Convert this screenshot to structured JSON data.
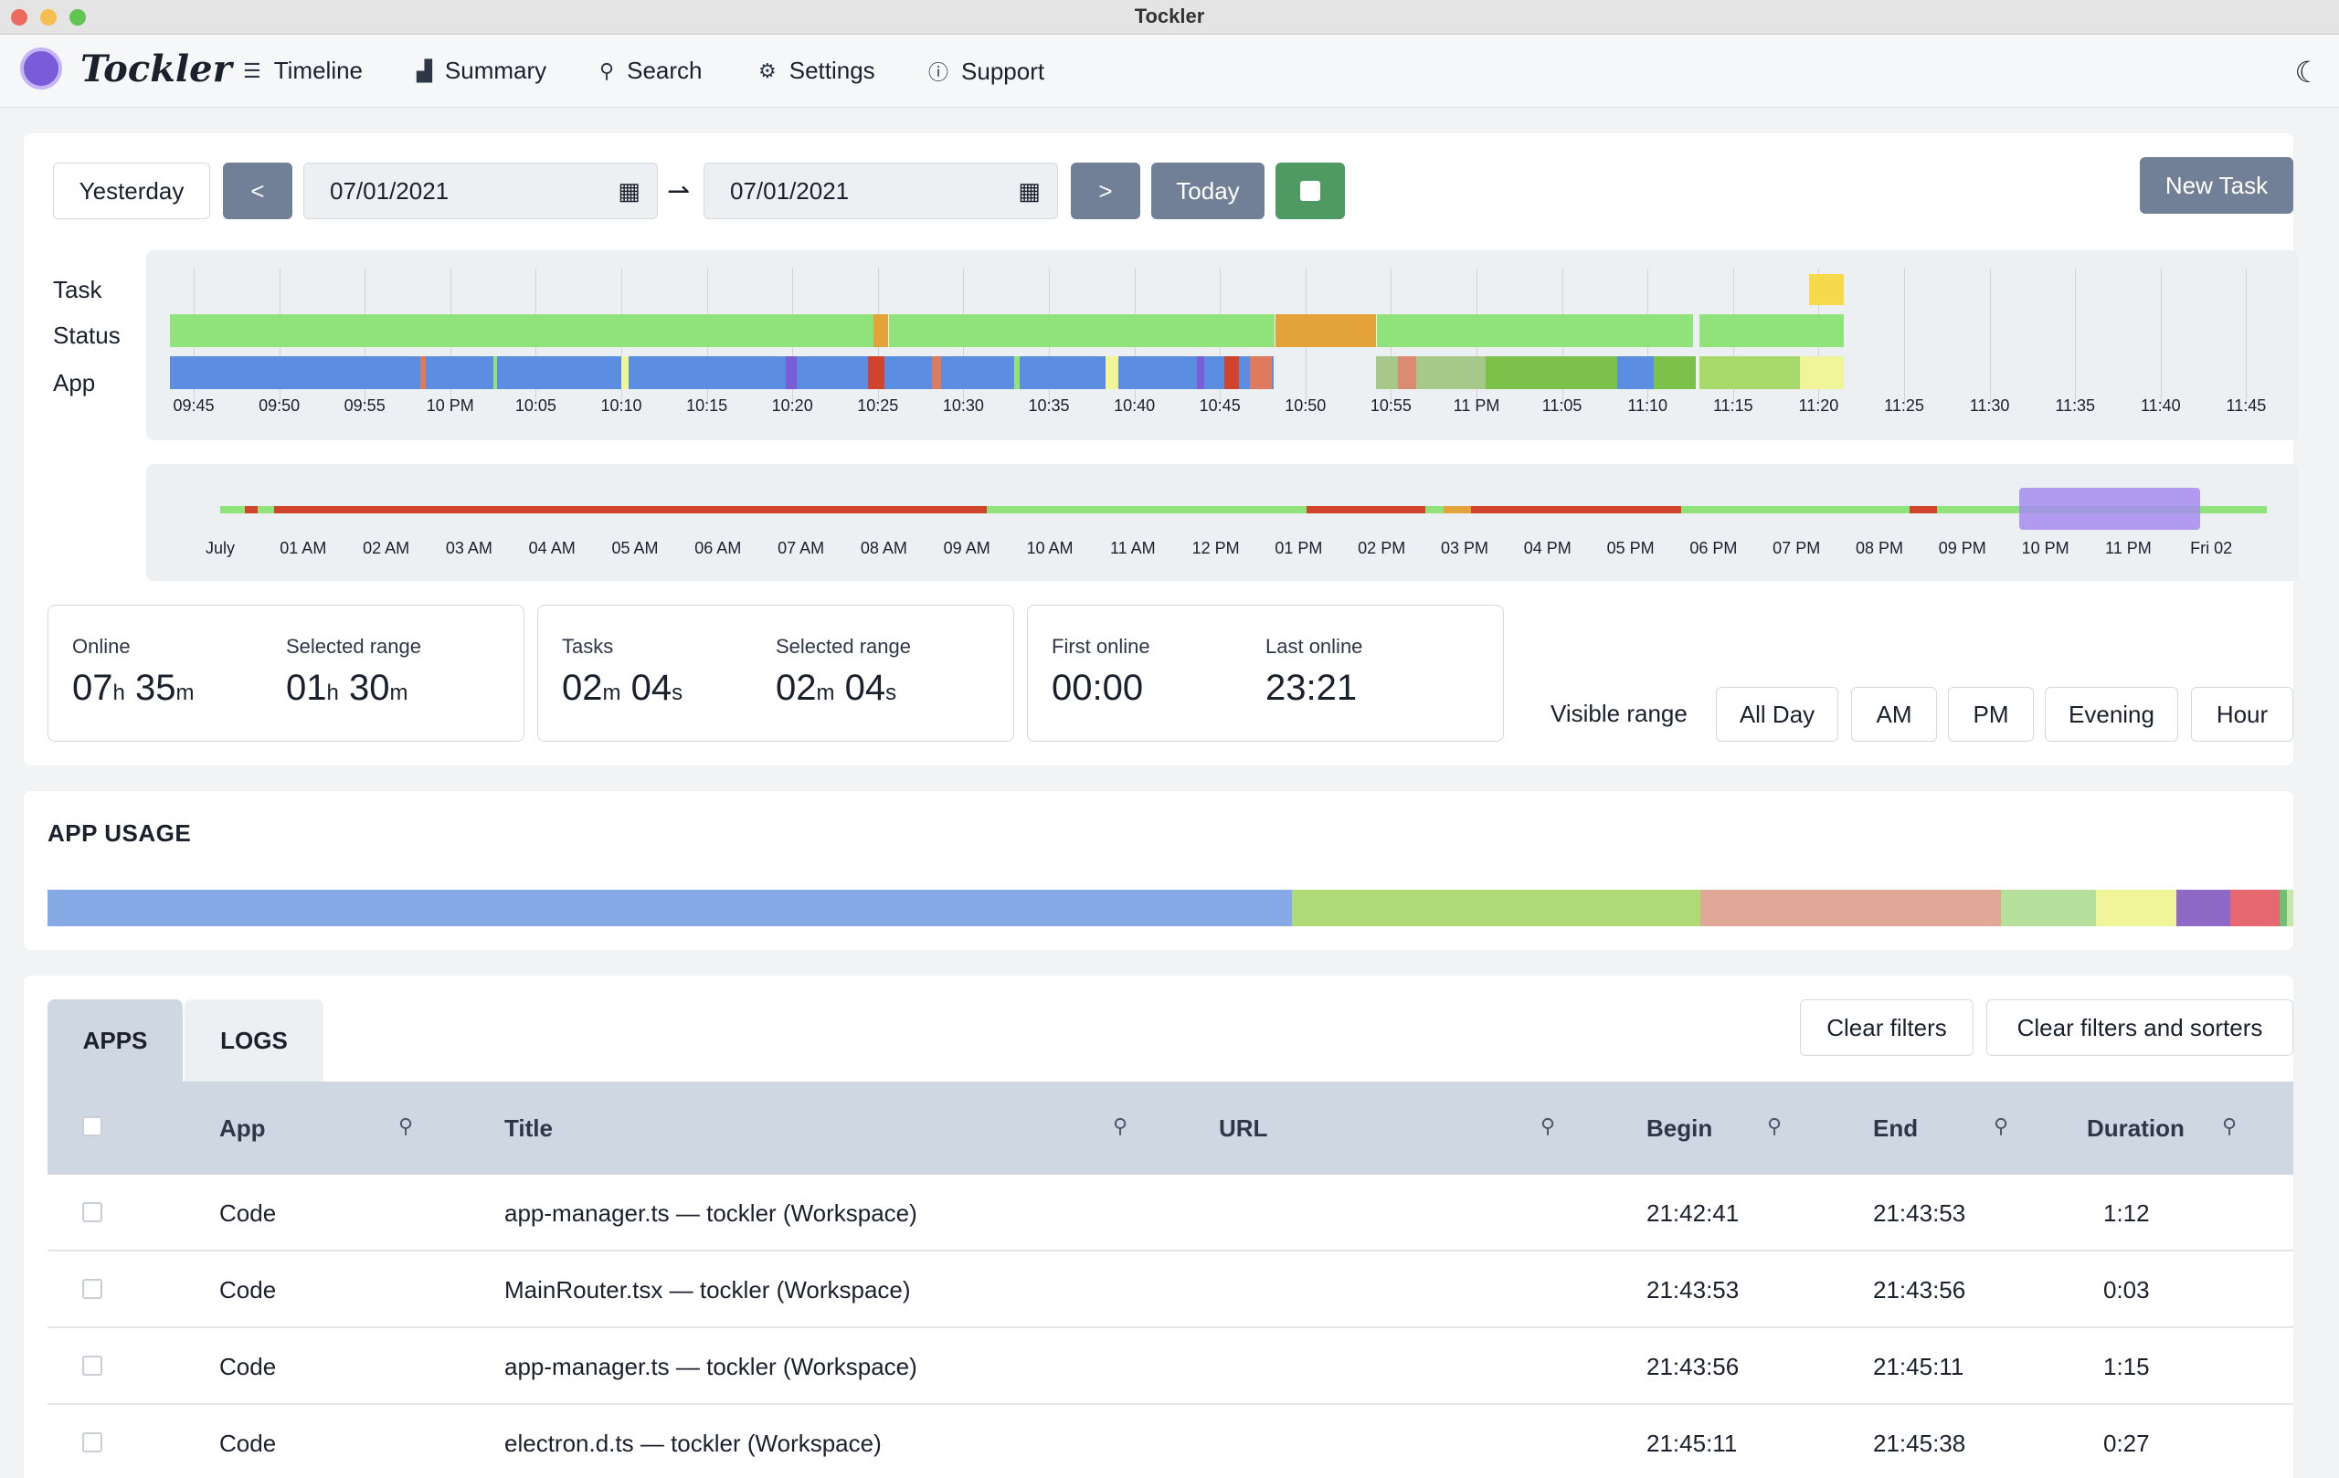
{
  "window": {
    "title": "Tockler"
  },
  "brand": "Tockler",
  "nav": [
    {
      "label": "Timeline",
      "icon": "list-icon"
    },
    {
      "label": "Summary",
      "icon": "chart-icon"
    },
    {
      "label": "Search",
      "icon": "search-icon"
    },
    {
      "label": "Settings",
      "icon": "gear-icon"
    },
    {
      "label": "Support",
      "icon": "question-icon"
    }
  ],
  "controls": {
    "yesterday": "Yesterday",
    "prev": "<",
    "next": ">",
    "date_from": "07/01/2021",
    "date_to": "07/01/2021",
    "arrow": "⇀",
    "today": "Today",
    "new_task": "New Task"
  },
  "timeline": {
    "rows": [
      "Task",
      "Status",
      "App"
    ],
    "ticks": [
      "09:45",
      "09:50",
      "09:55",
      "10 PM",
      "10:05",
      "10:10",
      "10:15",
      "10:20",
      "10:25",
      "10:30",
      "10:35",
      "10:40",
      "10:45",
      "10:50",
      "10:55",
      "11 PM",
      "11:05",
      "11:10",
      "11:15",
      "11:20",
      "11:25",
      "11:30",
      "11:35",
      "11:40",
      "11:45"
    ],
    "overview_ticks": [
      "July",
      "01 AM",
      "02 AM",
      "03 AM",
      "04 AM",
      "05 AM",
      "06 AM",
      "07 AM",
      "08 AM",
      "09 AM",
      "10 AM",
      "11 AM",
      "12 PM",
      "01 PM",
      "02 PM",
      "03 PM",
      "04 PM",
      "05 PM",
      "06 PM",
      "07 PM",
      "08 PM",
      "09 PM",
      "10 PM",
      "11 PM",
      "Fri 02"
    ],
    "colors": {
      "online": "#8fe37a",
      "idle": "#e4a23a",
      "offline": "#d0442e",
      "task": "#f7d94c",
      "code": "#5b8ee0",
      "selection": "#a48cf0"
    }
  },
  "stats": [
    {
      "label": "Online",
      "value": [
        [
          "07",
          "h"
        ],
        [
          "35",
          "m"
        ]
      ]
    },
    {
      "label": "Selected range",
      "value": [
        [
          "01",
          "h"
        ],
        [
          "30",
          "m"
        ]
      ]
    },
    {
      "label": "Tasks",
      "value": [
        [
          "02",
          "m"
        ],
        [
          "04",
          "s"
        ]
      ]
    },
    {
      "label": "Selected range",
      "value": [
        [
          "02",
          "m"
        ],
        [
          "04",
          "s"
        ]
      ]
    },
    {
      "label": "First online",
      "value": [
        [
          "00:00",
          ""
        ]
      ]
    },
    {
      "label": "Last online",
      "value": [
        [
          "23:21",
          ""
        ]
      ]
    }
  ],
  "visible_range": {
    "label": "Visible range",
    "options": [
      "All Day",
      "AM",
      "PM",
      "Evening",
      "Hour"
    ]
  },
  "app_usage": {
    "title": "APP USAGE",
    "segments": [
      {
        "share": 0.554,
        "color": "#85aae6"
      },
      {
        "share": 0.182,
        "color": "#aedb78"
      },
      {
        "share": 0.134,
        "color": "#dfa897"
      },
      {
        "share": 0.042,
        "color": "#b5e09c"
      },
      {
        "share": 0.036,
        "color": "#f1f59a"
      },
      {
        "share": 0.024,
        "color": "#8e6ac6"
      },
      {
        "share": 0.022,
        "color": "#e76770"
      },
      {
        "share": 0.003,
        "color": "#6fbf73"
      },
      {
        "share": 0.003,
        "color": "#c7e6a8"
      }
    ]
  },
  "table": {
    "tabs": [
      "APPS",
      "LOGS"
    ],
    "clear_filters": "Clear filters",
    "clear_all": "Clear filters and sorters",
    "columns": [
      "App",
      "Title",
      "URL",
      "Begin",
      "End",
      "Duration"
    ],
    "rows": [
      {
        "app": "Code",
        "title": "app-manager.ts — tockler (Workspace)",
        "url": "",
        "begin": "21:42:41",
        "end": "21:43:53",
        "duration": "1:12"
      },
      {
        "app": "Code",
        "title": "MainRouter.tsx — tockler (Workspace)",
        "url": "",
        "begin": "21:43:53",
        "end": "21:43:56",
        "duration": "0:03"
      },
      {
        "app": "Code",
        "title": "app-manager.ts — tockler (Workspace)",
        "url": "",
        "begin": "21:43:56",
        "end": "21:45:11",
        "duration": "1:15"
      },
      {
        "app": "Code",
        "title": "electron.d.ts — tockler (Workspace)",
        "url": "",
        "begin": "21:45:11",
        "end": "21:45:38",
        "duration": "0:27"
      }
    ]
  }
}
